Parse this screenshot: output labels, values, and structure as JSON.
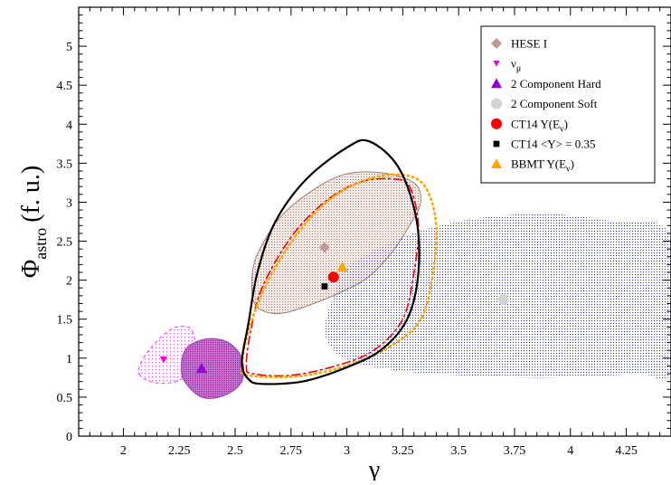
{
  "chart_data": {
    "type": "scatter",
    "xlabel": "γ",
    "ylabel_main": "Φ",
    "ylabel_sub": "astro",
    "ylabel_unit": "(f. u.)",
    "xlim": [
      1.8,
      4.45
    ],
    "ylim": [
      0,
      5.5
    ],
    "xticks": [
      2,
      2.25,
      2.5,
      2.75,
      3,
      3.25,
      3.5,
      3.75,
      4,
      4.25
    ],
    "xtick_labels": [
      "2",
      "2.25",
      "2.5",
      "2.75",
      "3",
      "3.25",
      "3.5",
      "3.75",
      "4",
      "4.25"
    ],
    "yticks": [
      0,
      0.5,
      1,
      1.5,
      2,
      2.5,
      3,
      3.5,
      4,
      4.5,
      5
    ],
    "ytick_labels": [
      "0",
      "0.5",
      "1",
      "1.5",
      "2",
      "2.5",
      "3",
      "3.5",
      "4",
      "4.5",
      "5"
    ],
    "grid": false,
    "legend_position": "top-right",
    "series": [
      {
        "name": "HESE  I",
        "marker": "diamond",
        "color": "#c09898",
        "x": 2.9,
        "y": 2.42
      },
      {
        "name": "ν",
        "name_sub": "μ",
        "marker": "triangle-down",
        "color": "#ee00ee",
        "x": 2.18,
        "y": 0.98
      },
      {
        "name": "2 Component Hard",
        "marker": "triangle-up",
        "color": "#9400d3",
        "x": 2.35,
        "y": 0.87
      },
      {
        "name": "2 Component Soft",
        "marker": "circle",
        "color": "#d3d3d3",
        "x": 3.7,
        "y": 1.75
      },
      {
        "name": "CT14 Y(E",
        "name_sub": "ν",
        "name_tail": ")",
        "marker": "circle",
        "color": "#ff0000",
        "x": 2.94,
        "y": 2.04
      },
      {
        "name": "CT14 <Y> = 0.35",
        "marker": "square",
        "color": "#000000",
        "x": 2.9,
        "y": 1.92
      },
      {
        "name": "BBMT Y(E",
        "name_sub": "ν",
        "name_tail": ")",
        "marker": "triangle-up",
        "color": "#ffa500",
        "x": 2.98,
        "y": 2.17
      }
    ],
    "regions": [
      {
        "for": "HESE  I",
        "style": "filled",
        "fill": "#c4a59c",
        "stroke": "#a07c74",
        "points": [
          [
            2.58,
            1.75
          ],
          [
            2.63,
            1.6
          ],
          [
            2.72,
            1.58
          ],
          [
            2.85,
            1.7
          ],
          [
            3.0,
            1.88
          ],
          [
            3.1,
            2.05
          ],
          [
            3.2,
            2.35
          ],
          [
            3.28,
            2.7
          ],
          [
            3.33,
            3.0
          ],
          [
            3.3,
            3.25
          ],
          [
            3.15,
            3.38
          ],
          [
            2.98,
            3.35
          ],
          [
            2.82,
            3.1
          ],
          [
            2.7,
            2.8
          ],
          [
            2.62,
            2.45
          ],
          [
            2.58,
            2.15
          ]
        ]
      },
      {
        "for": "2 Component Soft",
        "style": "filled",
        "fill": "#3a3fa8",
        "stroke": "none",
        "points": [
          [
            2.92,
            1.18
          ],
          [
            3.0,
            0.98
          ],
          [
            3.2,
            0.85
          ],
          [
            3.5,
            0.78
          ],
          [
            3.9,
            0.75
          ],
          [
            4.3,
            0.8
          ],
          [
            4.45,
            0.85
          ],
          [
            4.45,
            2.55
          ],
          [
            4.2,
            2.75
          ],
          [
            3.9,
            2.85
          ],
          [
            3.6,
            2.8
          ],
          [
            3.35,
            2.65
          ],
          [
            3.15,
            2.42
          ],
          [
            3.0,
            2.15
          ],
          [
            2.94,
            1.8
          ],
          [
            2.9,
            1.4
          ]
        ]
      },
      {
        "for": "ν",
        "style": "filled",
        "fill": "#ff55ff",
        "stroke": "#ff33ff",
        "points": [
          [
            2.07,
            0.8
          ],
          [
            2.12,
            0.7
          ],
          [
            2.2,
            0.68
          ],
          [
            2.27,
            0.75
          ],
          [
            2.3,
            0.95
          ],
          [
            2.32,
            1.2
          ],
          [
            2.3,
            1.38
          ],
          [
            2.24,
            1.4
          ],
          [
            2.18,
            1.3
          ],
          [
            2.12,
            1.12
          ],
          [
            2.08,
            0.95
          ]
        ]
      },
      {
        "for": "2 Component Hard",
        "style": "filled",
        "fill": "#a020a0",
        "stroke": "#a040b0",
        "points": [
          [
            2.27,
            0.72
          ],
          [
            2.35,
            0.5
          ],
          [
            2.45,
            0.52
          ],
          [
            2.53,
            0.7
          ],
          [
            2.53,
            1.0
          ],
          [
            2.47,
            1.2
          ],
          [
            2.38,
            1.25
          ],
          [
            2.29,
            1.15
          ],
          [
            2.26,
            0.95
          ]
        ]
      },
      {
        "for": "CT14 Y(E",
        "style": "dashdot",
        "stroke": "#ff0000",
        "points": [
          [
            2.55,
            0.9
          ],
          [
            2.58,
            0.8
          ],
          [
            2.75,
            0.78
          ],
          [
            2.95,
            0.9
          ],
          [
            3.12,
            1.1
          ],
          [
            3.25,
            1.5
          ],
          [
            3.3,
            2.1
          ],
          [
            3.32,
            2.7
          ],
          [
            3.28,
            3.2
          ],
          [
            3.2,
            3.3
          ],
          [
            3.05,
            3.25
          ],
          [
            2.9,
            3.0
          ],
          [
            2.75,
            2.55
          ],
          [
            2.62,
            1.9
          ],
          [
            2.57,
            1.35
          ]
        ]
      },
      {
        "for": "BBMT Y(E",
        "style": "dotted",
        "stroke": "#ffa500",
        "points": [
          [
            2.53,
            0.88
          ],
          [
            2.56,
            0.78
          ],
          [
            2.75,
            0.76
          ],
          [
            2.95,
            0.86
          ],
          [
            3.15,
            1.08
          ],
          [
            3.32,
            1.45
          ],
          [
            3.38,
            2.0
          ],
          [
            3.4,
            2.7
          ],
          [
            3.35,
            3.2
          ],
          [
            3.25,
            3.35
          ],
          [
            3.1,
            3.3
          ],
          [
            2.93,
            3.05
          ],
          [
            2.78,
            2.6
          ],
          [
            2.64,
            1.95
          ],
          [
            2.56,
            1.35
          ]
        ]
      },
      {
        "for": "CT14 <Y> = 0.35",
        "style": "solid",
        "stroke": "#000000",
        "points": [
          [
            2.53,
            0.95
          ],
          [
            2.56,
            0.73
          ],
          [
            2.62,
            0.67
          ],
          [
            2.8,
            0.7
          ],
          [
            2.98,
            0.86
          ],
          [
            3.15,
            1.1
          ],
          [
            3.27,
            1.5
          ],
          [
            3.32,
            2.1
          ],
          [
            3.31,
            2.8
          ],
          [
            3.23,
            3.45
          ],
          [
            3.1,
            3.78
          ],
          [
            3.0,
            3.7
          ],
          [
            2.82,
            3.3
          ],
          [
            2.68,
            2.75
          ],
          [
            2.6,
            2.1
          ],
          [
            2.56,
            1.45
          ]
        ]
      }
    ]
  }
}
